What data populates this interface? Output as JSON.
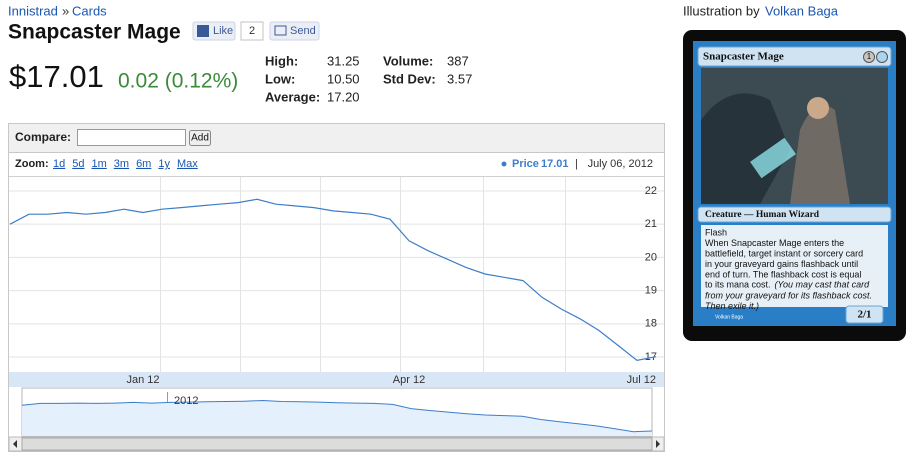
{
  "breadcrumb": {
    "set": "Innistrad",
    "separator": "»",
    "section": "Cards"
  },
  "title": "Snapcaster Mage",
  "social": {
    "like": "Like",
    "like_count": "2",
    "send": "Send"
  },
  "price": {
    "current": "$17.01",
    "change": "0.02 (0.12%)"
  },
  "stats": [
    {
      "label": "High:",
      "value": "31.25"
    },
    {
      "label": "Low:",
      "value": "10.50"
    },
    {
      "label": "Average:",
      "value": "17.20"
    },
    {
      "label": "Volume:",
      "value": "387"
    },
    {
      "label": "Std Dev:",
      "value": "3.57"
    }
  ],
  "compare": {
    "label": "Compare:",
    "button": "Add"
  },
  "zoom": {
    "label": "Zoom:",
    "options": [
      "1d",
      "5d",
      "1m",
      "3m",
      "6m",
      "1y",
      "Max"
    ]
  },
  "chart_data": {
    "type": "line",
    "categories": [
      null,
      null,
      null,
      null,
      null,
      null,
      null,
      "Jan 12",
      null,
      null,
      null,
      null,
      null,
      null,
      null,
      null,
      null,
      null,
      null,
      null,
      null,
      "Apr 12",
      null,
      null,
      null,
      null,
      null,
      null,
      null,
      null,
      null,
      null,
      null,
      null,
      "Jul 12"
    ],
    "series": [
      {
        "name": "Price",
        "color": "#3d7ec9",
        "values": [
          21.0,
          21.3,
          21.3,
          21.35,
          21.3,
          21.35,
          21.45,
          21.35,
          21.45,
          21.5,
          21.55,
          21.6,
          21.65,
          21.75,
          21.6,
          21.55,
          21.5,
          21.4,
          21.35,
          21.3,
          21.15,
          20.5,
          20.2,
          19.95,
          19.7,
          19.5,
          19.4,
          19.3,
          18.8,
          18.45,
          18.15,
          17.8,
          17.35,
          16.9,
          17.01
        ]
      }
    ],
    "legend_value": "17.01",
    "legend_separator": "|",
    "date": "July 06, 2012",
    "navigator_label": "2012",
    "ylim": [
      16.55,
      22.45
    ],
    "yticks": [
      17,
      18,
      19,
      20,
      21,
      22
    ],
    "grid": true
  },
  "illustration": {
    "label": "Illustration by",
    "artist": "Volkan Baga"
  },
  "card": {
    "name": "Snapcaster Mage",
    "mana": "1",
    "type_line": "Creature — Human Wizard",
    "rules": [
      "Flash",
      "When Snapcaster Mage enters the",
      "battlefield, target instant or sorcery card",
      "in your graveyard gains flashback until",
      "end of turn. The flashback cost is equal"
    ],
    "rules_last": "to its mana cost.",
    "reminder": [
      "(You may cast that card",
      "from your graveyard for its flashback cost.",
      "Then exile it.)"
    ],
    "power_toughness": "2/1",
    "artist_credit": "Volkan Baga"
  }
}
